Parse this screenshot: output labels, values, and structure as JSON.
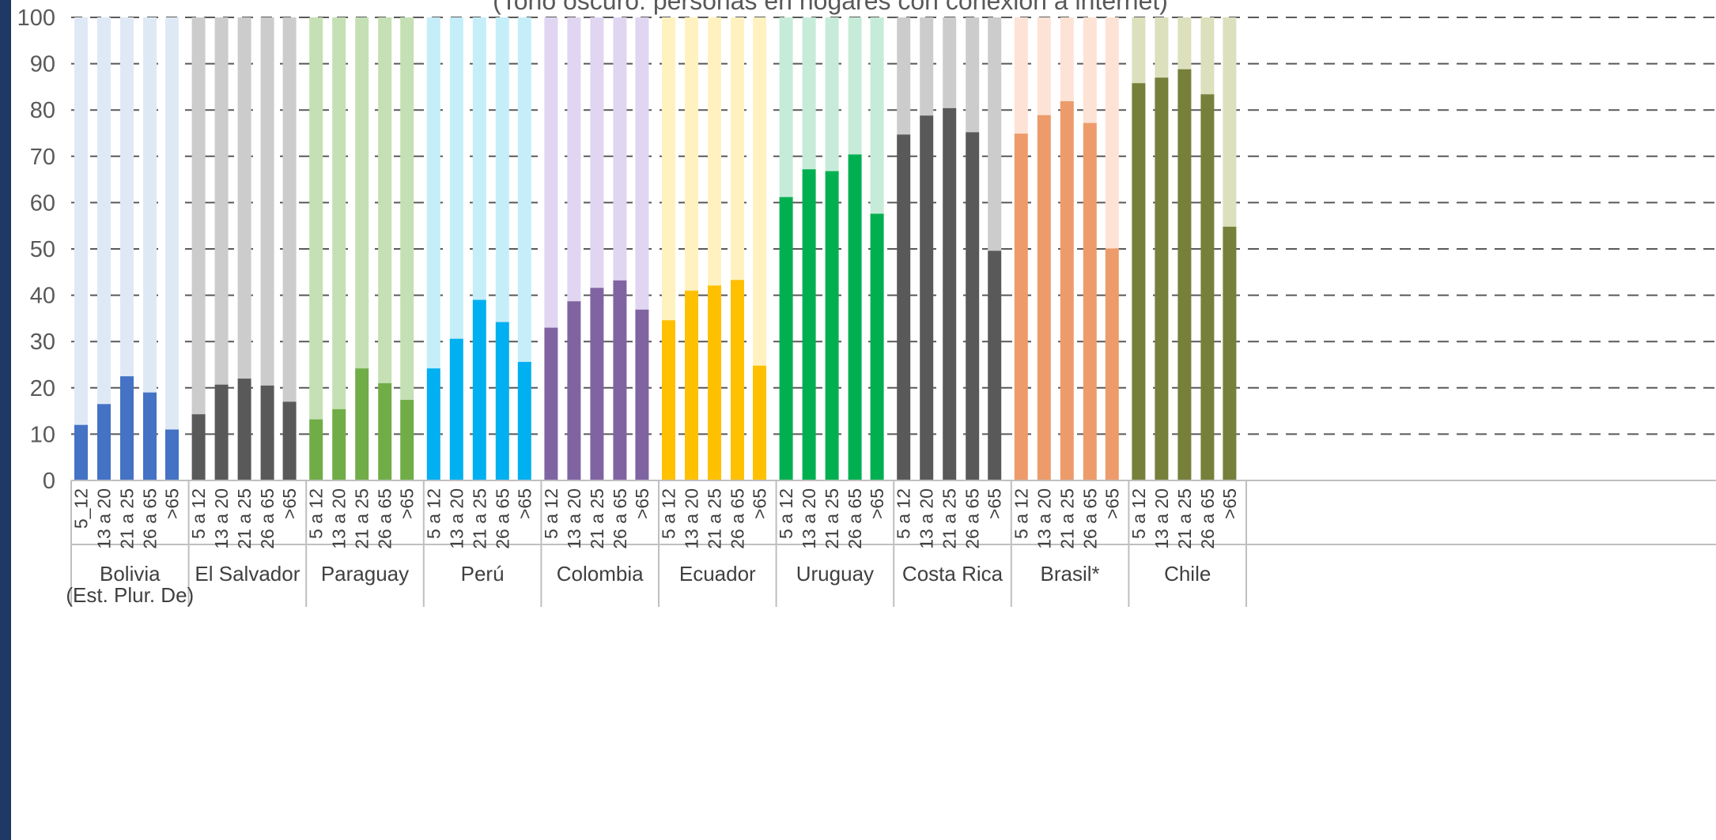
{
  "chart_data": {
    "type": "bar",
    "subtitle": "(Tono oscuro: personas en hogares con conexión a internet)",
    "ylim": [
      0,
      100
    ],
    "yticks": [
      0,
      10,
      20,
      30,
      40,
      50,
      60,
      70,
      80,
      90,
      100
    ],
    "grid": true,
    "groups": [
      {
        "country": "Bolivia",
        "country_line2": "(Est. Plur. De)",
        "categories": [
          "5_12",
          "13 a 20",
          "21 a 25",
          "26 a 65",
          ">65"
        ],
        "values": [
          12,
          16.5,
          22.5,
          19,
          11
        ],
        "total": [
          100,
          100,
          100,
          100,
          100
        ],
        "dark_color": "#4472c4",
        "light_color": "#dfe9f6"
      },
      {
        "country": "El Salvador",
        "country_line2": "",
        "categories": [
          "5 a 12",
          "13 a 20",
          "21 a 25",
          "26 a 65",
          ">65"
        ],
        "values": [
          14.3,
          20.7,
          22,
          20.5,
          17
        ],
        "total": [
          100,
          100,
          100,
          100,
          100
        ],
        "dark_color": "#595959",
        "light_color": "#cccccc"
      },
      {
        "country": "Paraguay",
        "country_line2": "",
        "categories": [
          "5 a 12",
          "13 a 20",
          "21 a 25",
          "26 a 65",
          ">65"
        ],
        "values": [
          13.2,
          15.4,
          24.2,
          21,
          17.4
        ],
        "total": [
          100,
          100,
          100,
          100,
          100
        ],
        "dark_color": "#70ad47",
        "light_color": "#c5e0b4"
      },
      {
        "country": "Perú",
        "country_line2": "",
        "categories": [
          "5 a 12",
          "13 a 20",
          "21 a 25",
          "26 a 65",
          ">65"
        ],
        "values": [
          24.2,
          30.6,
          39,
          34.2,
          25.6
        ],
        "total": [
          100,
          100,
          100,
          100,
          100
        ],
        "dark_color": "#00b0f0",
        "light_color": "#c5eef9"
      },
      {
        "country": "Colombia",
        "country_line2": "",
        "categories": [
          "5 a 12",
          "13 a 20",
          "21 a 25",
          "26 a 65",
          ">65"
        ],
        "values": [
          33,
          38.7,
          41.6,
          43.2,
          36.9
        ],
        "total": [
          100,
          100,
          100,
          100,
          100
        ],
        "dark_color": "#8064a2",
        "light_color": "#e0d6f2"
      },
      {
        "country": "Ecuador",
        "country_line2": "",
        "categories": [
          "5 a 12",
          "13 a 20",
          "21 a 25",
          "26 a 65",
          ">65"
        ],
        "values": [
          34.6,
          41,
          42.1,
          43.3,
          24.8
        ],
        "total": [
          100,
          100,
          100,
          100,
          100
        ],
        "dark_color": "#ffc000",
        "light_color": "#fff2c0"
      },
      {
        "country": "Uruguay",
        "country_line2": "",
        "categories": [
          "5 a 12",
          "13 a 20",
          "21 a 25",
          "26 a 65",
          ">65"
        ],
        "values": [
          61.2,
          67.2,
          66.8,
          70.4,
          57.6
        ],
        "total": [
          100,
          100,
          100,
          100,
          100
        ],
        "dark_color": "#00b050",
        "light_color": "#c6ecd9"
      },
      {
        "country": "Costa Rica",
        "country_line2": "",
        "categories": [
          "5 a 12",
          "13 a 20",
          "21 a 25",
          "26 a 65",
          ">65"
        ],
        "values": [
          74.7,
          78.8,
          80.4,
          75.2,
          49.6
        ],
        "total": [
          100,
          100,
          100,
          100,
          100
        ],
        "dark_color": "#595959",
        "light_color": "#cccccc"
      },
      {
        "country": "Brasil*",
        "country_line2": "",
        "categories": [
          "5 a 12",
          "13 a 20",
          "21 a 25",
          "26 a 65",
          ">65"
        ],
        "values": [
          74.9,
          78.9,
          81.9,
          77.2,
          50.1
        ],
        "total": [
          100,
          100,
          100,
          100,
          100
        ],
        "dark_color": "#ed9b6a",
        "light_color": "#fde3d5"
      },
      {
        "country": "Chile",
        "country_line2": "",
        "categories": [
          "5 a 12",
          "13 a 20",
          "21 a 25",
          "26 a 65",
          ">65"
        ],
        "values": [
          85.8,
          87,
          88.8,
          83.4,
          54.8
        ],
        "total": [
          100,
          100,
          100,
          100,
          100
        ],
        "dark_color": "#76803a",
        "light_color": "#dde0bd"
      }
    ]
  }
}
